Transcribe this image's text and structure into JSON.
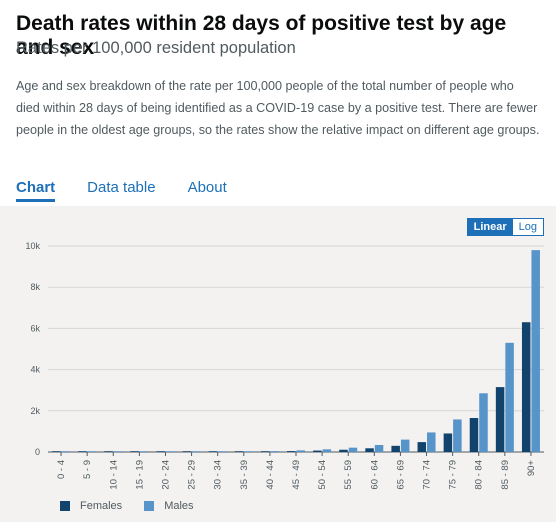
{
  "header": {
    "title": "Death rates within 28 days of positive test by age and sex",
    "subtitle": "Rates per 100,000 resident population",
    "description": "Age and sex breakdown of the rate per 100,000 people of the total number of people who died within 28 days of being identified as a COVID-19 case by a positive test. There are fewer people in the oldest age groups, so the rates show the relative impact on different age groups."
  },
  "tabs": [
    {
      "label": "Chart"
    },
    {
      "label": "Data table"
    },
    {
      "label": "About"
    }
  ],
  "scale_toggle": {
    "linear": "Linear",
    "log": "Log",
    "selected": "Linear"
  },
  "colors": {
    "females": "#12436d",
    "males": "#5694ca",
    "grid": "#d6d6d6",
    "axis": "#505a5f"
  },
  "chart_data": {
    "type": "bar",
    "title": "",
    "xlabel": "",
    "ylabel": "",
    "ylim": [
      0,
      10000
    ],
    "yticks": [
      0,
      2000,
      4000,
      6000,
      8000,
      10000
    ],
    "ytick_labels": [
      "0",
      "2k",
      "4k",
      "6k",
      "8k",
      "10k"
    ],
    "grid": true,
    "legend_position": "bottom-left",
    "categories": [
      "0 - 4",
      "5 - 9",
      "10 - 14",
      "15 - 19",
      "20 - 24",
      "25 - 29",
      "30 - 34",
      "35 - 39",
      "40 - 44",
      "45 - 49",
      "50 - 54",
      "55 - 59",
      "60 - 64",
      "65 - 69",
      "70 - 74",
      "75 - 79",
      "80 - 84",
      "85 - 89",
      "90+"
    ],
    "series": [
      {
        "name": "Females",
        "values": [
          1,
          1,
          1,
          1,
          3,
          5,
          9,
          15,
          25,
          45,
          70,
          110,
          180,
          300,
          480,
          900,
          1650,
          3150,
          6300
        ]
      },
      {
        "name": "Males",
        "values": [
          1,
          1,
          1,
          1,
          4,
          8,
          14,
          25,
          45,
          80,
          130,
          210,
          340,
          600,
          950,
          1580,
          2850,
          5300,
          9800
        ]
      }
    ]
  }
}
